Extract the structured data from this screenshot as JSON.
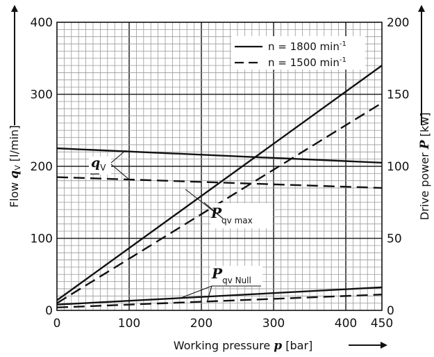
{
  "chart_data": {
    "type": "line",
    "x_axis": {
      "label_prefix": "Working pressure ",
      "label_symbol": "p",
      "label_suffix": " [bar]",
      "range": [
        0,
        450
      ],
      "ticks": [
        0,
        100,
        200,
        300,
        400,
        450
      ]
    },
    "y_left": {
      "label_prefix": "Flow ",
      "label_symbol": "q",
      "label_sub": "V",
      "label_suffix": " [l/min]",
      "range": [
        0,
        400
      ],
      "ticks": [
        0,
        100,
        200,
        300,
        400
      ]
    },
    "y_right": {
      "label_prefix": "Drive power ",
      "label_symbol": "P",
      "label_suffix": " [kw]",
      "range": [
        0,
        200
      ],
      "ticks": [
        0,
        50,
        100,
        150,
        200
      ]
    },
    "grid": true,
    "legend": {
      "position": "top-right",
      "entries": [
        {
          "text": "n = 1800 min",
          "sup": "-1",
          "style": "solid"
        },
        {
          "text": "n = 1500 min",
          "sup": "-1",
          "style": "dashed"
        }
      ]
    },
    "annotations": [
      {
        "symbol": "q",
        "sub": "V"
      },
      {
        "symbol": "P",
        "sub": "qv max"
      },
      {
        "symbol": "P",
        "sub": "qv Null"
      }
    ],
    "series": [
      {
        "name": "qv n=1800",
        "axis": "left",
        "style": "solid",
        "x": [
          0,
          450
        ],
        "y": [
          225,
          205
        ]
      },
      {
        "name": "qv n=1500",
        "axis": "left",
        "style": "dashed",
        "x": [
          0,
          450
        ],
        "y": [
          185,
          170
        ]
      },
      {
        "name": "Pqv max n=1800",
        "axis": "right",
        "style": "solid",
        "x": [
          0,
          450
        ],
        "y": [
          7,
          170
        ]
      },
      {
        "name": "Pqv max n=1500",
        "axis": "right",
        "style": "dashed",
        "x": [
          0,
          450
        ],
        "y": [
          5,
          144
        ]
      },
      {
        "name": "Pqv Null n=1800",
        "axis": "right",
        "style": "solid",
        "x": [
          0,
          450
        ],
        "y": [
          4,
          16
        ]
      },
      {
        "name": "Pqv Null n=1500",
        "axis": "right",
        "style": "dashed",
        "x": [
          0,
          450
        ],
        "y": [
          2,
          11
        ]
      }
    ]
  }
}
